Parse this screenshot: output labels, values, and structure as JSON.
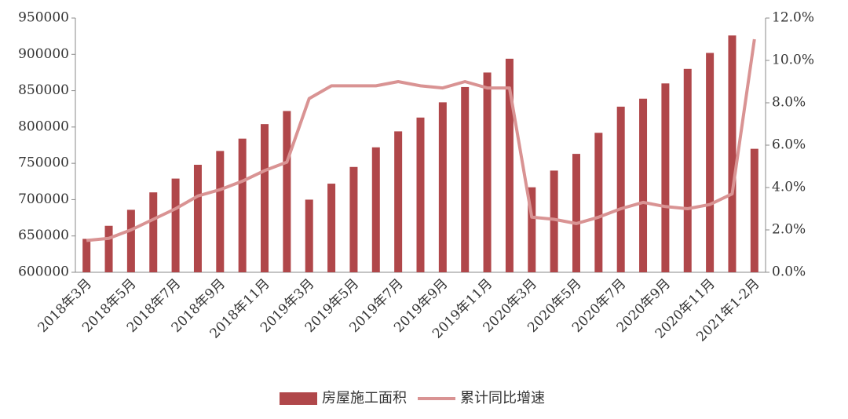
{
  "chart_data": {
    "type": "bar",
    "categories": [
      "2018年3月",
      null,
      "2018年5月",
      null,
      "2018年7月",
      null,
      "2018年9月",
      null,
      "2018年11月",
      null,
      "2019年3月",
      null,
      "2019年5月",
      null,
      "2019年7月",
      null,
      "2019年9月",
      null,
      "2019年11月",
      null,
      "2020年3月",
      null,
      "2020年5月",
      null,
      "2020年7月",
      null,
      "2020年9月",
      null,
      "2020年11月",
      null,
      "2021年1-2月"
    ],
    "series": [
      {
        "name": "房屋施工面积",
        "type": "bar",
        "color": "#b0474a",
        "values": [
          646000,
          664000,
          686000,
          710000,
          729000,
          748000,
          767000,
          784000,
          804000,
          822000,
          700000,
          722000,
          745000,
          772000,
          794000,
          813000,
          834000,
          855000,
          875000,
          894000,
          717000,
          740000,
          763000,
          792000,
          828000,
          839000,
          860000,
          880000,
          902000,
          926000,
          770000
        ]
      },
      {
        "name": "累计同比增速",
        "type": "line",
        "axis": "y2",
        "color": "#d99393",
        "values": [
          1.5,
          1.6,
          2.0,
          2.5,
          3.0,
          3.6,
          3.9,
          4.3,
          4.8,
          5.2,
          8.2,
          8.8,
          8.8,
          8.8,
          9.0,
          8.8,
          8.7,
          9.0,
          8.7,
          8.7,
          2.6,
          2.5,
          2.3,
          2.6,
          3.0,
          3.3,
          3.1,
          3.0,
          3.2,
          3.7,
          11.0
        ]
      }
    ],
    "ylim": [
      600000,
      950000
    ],
    "yticks": [
      600000,
      650000,
      700000,
      750000,
      800000,
      850000,
      900000,
      950000
    ],
    "y2lim": [
      0,
      12
    ],
    "y2ticks": [
      {
        "value": 0,
        "label": "0.0%"
      },
      {
        "value": 2,
        "label": "2.0%"
      },
      {
        "value": 4,
        "label": "4.0%"
      },
      {
        "value": 6,
        "label": "6.0%"
      },
      {
        "value": 8,
        "label": "8.0%"
      },
      {
        "value": 10,
        "label": "10.0%"
      },
      {
        "value": 12,
        "label": "12.0%"
      }
    ],
    "legend": "bottom"
  }
}
